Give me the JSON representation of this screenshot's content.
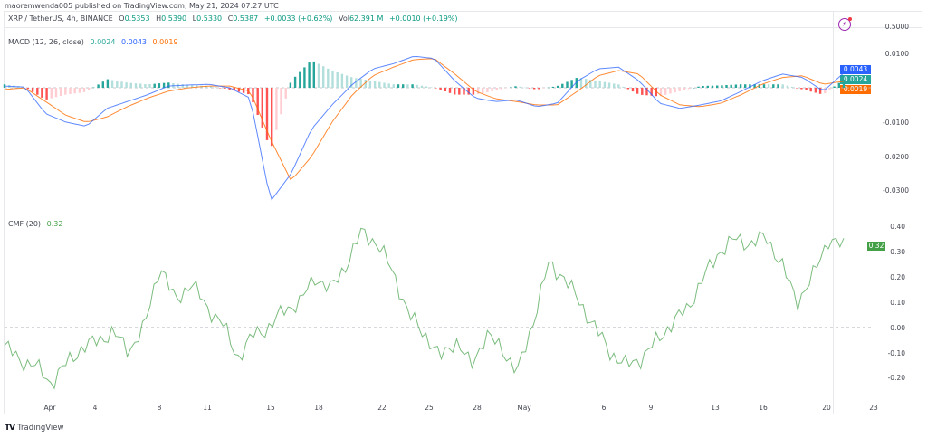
{
  "publisher_line": "maoremwenda005 published on TradingView.com, May 21, 2024 07:27 UTC",
  "symbol_legend": {
    "symbol": "XRP / TetherUS, 4h, BINANCE",
    "open_label": "O",
    "open": "0.5353",
    "high_label": "H",
    "high": "0.5390",
    "low_label": "L",
    "low": "0.5330",
    "close_label": "C",
    "close": "0.5387",
    "change": "+0.0033 (+0.62%)",
    "vol_label": "Vol",
    "vol": "62.391 M",
    "vol_change": "+0.0010 (+0.19%)"
  },
  "price_axis_top": "0.5000",
  "macd": {
    "title": "MACD (12, 26, close)",
    "hist_value": "0.0024",
    "macd_value": "0.0043",
    "signal_value": "0.0019",
    "axis": [
      "0.0100",
      "-0.0100",
      "-0.0200",
      "-0.0300"
    ],
    "tags": {
      "macd": "0.0043",
      "hist": "0.0024",
      "signal": "0.0019"
    }
  },
  "cmf": {
    "title": "CMF (20)",
    "value": "0.32",
    "axis": [
      "0.40",
      "0.30",
      "0.20",
      "0.10",
      "0.00",
      "-0.10",
      "-0.20"
    ],
    "tag": "0.32"
  },
  "time_axis": [
    "Apr",
    "4",
    "8",
    "11",
    "15",
    "18",
    "22",
    "25",
    "28",
    "May",
    "6",
    "9",
    "13",
    "16",
    "20",
    "23"
  ],
  "footer": {
    "brand": "TradingView"
  },
  "colors": {
    "macd_line": "#2962ff",
    "signal_line": "#ff6d00",
    "hist_up_strong": "#26a69a",
    "hist_up_weak": "#b2dfdb",
    "hist_down_strong": "#ff5252",
    "hist_down_weak": "#ffcdd2",
    "cmf_line": "#43a047",
    "flash": "#9c27b0"
  },
  "chart_data": [
    {
      "type": "line",
      "title": "MACD (12, 26, close)",
      "x": [
        "Apr",
        "4",
        "8",
        "11",
        "15",
        "18",
        "22",
        "25",
        "28",
        "May",
        "6",
        "9",
        "13",
        "16",
        "20",
        "23"
      ],
      "ylim": [
        -0.034,
        0.012
      ],
      "series": [
        {
          "name": "MACD",
          "values": [
            0.0005,
            0.0002,
            -0.0075,
            -0.01,
            -0.0112,
            -0.006,
            -0.004,
            -0.002,
            0.0005,
            0.0008,
            0.001,
            0.0,
            -0.003,
            -0.033,
            -0.025,
            -0.012,
            -0.005,
            0.001,
            0.0055,
            0.007,
            0.0092,
            0.0085,
            0.002,
            -0.003,
            -0.004,
            -0.0035,
            -0.0055,
            -0.0045,
            0.002,
            0.0055,
            0.006,
            0.002,
            -0.0045,
            -0.006,
            -0.005,
            -0.0038,
            -0.001,
            0.002,
            0.004,
            0.003,
            -0.001,
            0.0043
          ]
        },
        {
          "name": "Signal",
          "values": [
            -0.0005,
            0.0,
            -0.004,
            -0.008,
            -0.01,
            -0.0085,
            -0.0055,
            -0.003,
            -0.001,
            0.0,
            0.0005,
            0.0005,
            -0.001,
            -0.015,
            -0.027,
            -0.02,
            -0.01,
            -0.002,
            0.0035,
            0.006,
            0.0082,
            0.0085,
            0.004,
            -0.001,
            -0.0032,
            -0.004,
            -0.005,
            -0.005,
            -0.001,
            0.0035,
            0.005,
            0.004,
            -0.002,
            -0.005,
            -0.0055,
            -0.0045,
            -0.002,
            0.001,
            0.003,
            0.0035,
            0.001,
            0.0019
          ]
        },
        {
          "name": "Histogram",
          "values": [
            0.001,
            0.0002,
            -0.0035,
            -0.002,
            -0.0012,
            0.0025,
            0.0015,
            0.001,
            0.0015,
            0.0008,
            0.0005,
            -0.0005,
            -0.002,
            -0.013,
            0.002,
            0.008,
            0.005,
            0.003,
            0.002,
            0.001,
            0.001,
            0.0,
            -0.002,
            -0.002,
            -0.0008,
            0.0005,
            -0.0005,
            0.0005,
            0.003,
            0.002,
            0.001,
            -0.002,
            -0.0025,
            -0.001,
            0.0005,
            0.0007,
            0.001,
            0.001,
            0.001,
            -0.0005,
            -0.002,
            0.0024
          ]
        }
      ]
    },
    {
      "type": "line",
      "title": "CMF (20)",
      "x": [
        "Apr",
        "4",
        "8",
        "11",
        "15",
        "18",
        "22",
        "25",
        "28",
        "May",
        "6",
        "9",
        "13",
        "16",
        "20",
        "23"
      ],
      "ylim": [
        -0.25,
        0.42
      ],
      "series": [
        {
          "name": "CMF",
          "values": [
            -0.07,
            -0.13,
            -0.15,
            -0.22,
            -0.14,
            -0.08,
            -0.05,
            -0.02,
            -0.09,
            0.0,
            0.25,
            0.1,
            0.18,
            0.08,
            0.02,
            -0.12,
            -0.03,
            0.0,
            0.07,
            0.1,
            0.2,
            0.15,
            0.25,
            0.38,
            0.33,
            0.22,
            0.05,
            -0.02,
            -0.12,
            -0.05,
            -0.15,
            -0.03,
            -0.08,
            -0.18,
            0.02,
            0.25,
            0.2,
            0.1,
            0.0,
            -0.1,
            -0.15,
            -0.12,
            -0.05,
            0.02,
            0.08,
            0.2,
            0.3,
            0.35,
            0.33,
            0.36,
            0.25,
            0.1,
            0.2,
            0.35,
            0.32
          ]
        }
      ]
    }
  ]
}
